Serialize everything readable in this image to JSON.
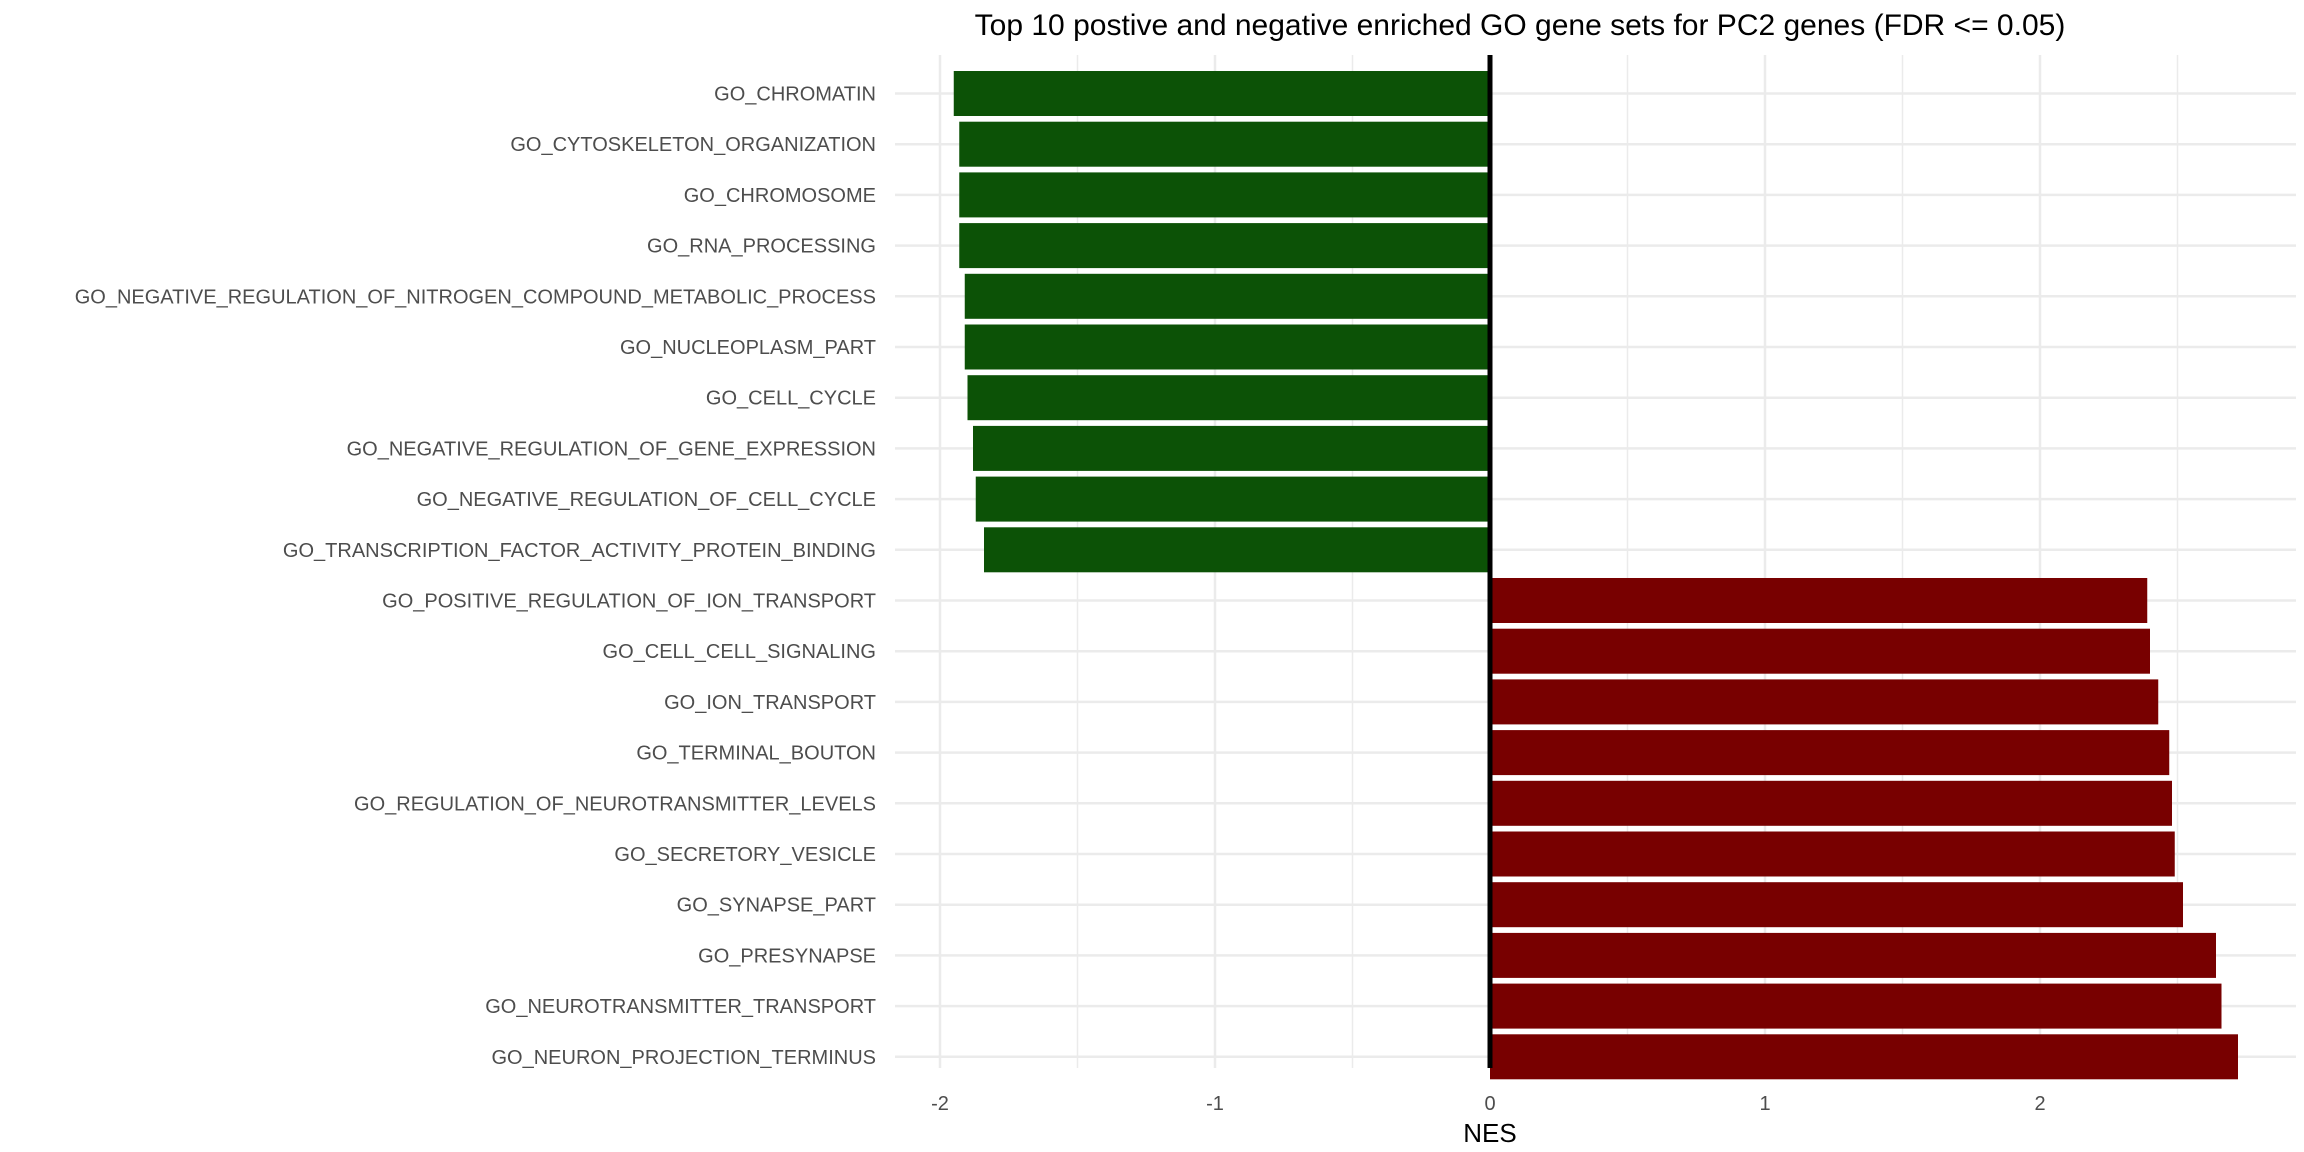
{
  "chart_data": {
    "type": "bar",
    "orientation": "horizontal",
    "title": "Top 10 postive and negative enriched GO gene sets for PC2 genes (FDR <= 0.05)",
    "xlabel": "NES",
    "ylabel": "",
    "xlim": [
      -2.05,
      2.8
    ],
    "xticks": [
      -2,
      -1,
      0,
      1,
      2
    ],
    "xtick_labels": [
      "-2",
      "-1",
      "0",
      "1",
      "2"
    ],
    "grid": true,
    "legend": "none",
    "categories": [
      "GO_CHROMATIN",
      "GO_CYTOSKELETON_ORGANIZATION",
      "GO_CHROMOSOME",
      "GO_RNA_PROCESSING",
      "GO_NEGATIVE_REGULATION_OF_NITROGEN_COMPOUND_METABOLIC_PROCESS",
      "GO_NUCLEOPLASM_PART",
      "GO_CELL_CYCLE",
      "GO_NEGATIVE_REGULATION_OF_GENE_EXPRESSION",
      "GO_NEGATIVE_REGULATION_OF_CELL_CYCLE",
      "GO_TRANSCRIPTION_FACTOR_ACTIVITY_PROTEIN_BINDING",
      "GO_POSITIVE_REGULATION_OF_ION_TRANSPORT",
      "GO_CELL_CELL_SIGNALING",
      "GO_ION_TRANSPORT",
      "GO_TERMINAL_BOUTON",
      "GO_REGULATION_OF_NEUROTRANSMITTER_LEVELS",
      "GO_SECRETORY_VESICLE",
      "GO_SYNAPSE_PART",
      "GO_PRESYNAPSE",
      "GO_NEUROTRANSMITTER_TRANSPORT",
      "GO_NEURON_PROJECTION_TERMINUS"
    ],
    "values": [
      -1.95,
      -1.93,
      -1.93,
      -1.93,
      -1.91,
      -1.91,
      -1.9,
      -1.88,
      -1.87,
      -1.84,
      2.39,
      2.4,
      2.43,
      2.47,
      2.48,
      2.49,
      2.52,
      2.64,
      2.66,
      2.72
    ],
    "colors": {
      "negative": "#0c5206",
      "positive": "#780000",
      "zero_line": "#000000",
      "grid": "#ebebeb"
    }
  }
}
